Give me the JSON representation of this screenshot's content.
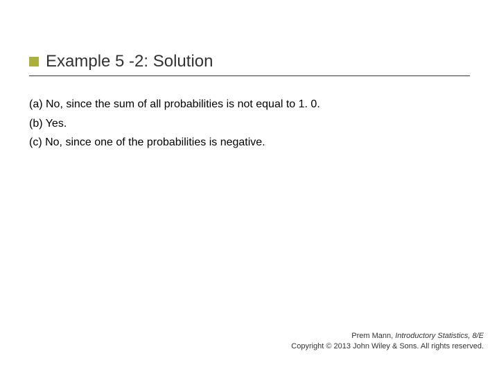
{
  "colors": {
    "accent_square": "#aab03a",
    "title_color": "#333333",
    "body_color": "#000000",
    "underline_color": "#333333",
    "background": "#ffffff",
    "footer_color": "#333333"
  },
  "title": {
    "text": "Example 5 -2: Solution",
    "fontsize": 24
  },
  "body": {
    "lines": [
      "(a) No, since the sum of all probabilities is not equal to 1. 0.",
      "(b) Yes.",
      "(c) No, since one of the probabilities is negative."
    ],
    "fontsize": 16
  },
  "footer": {
    "author": "Prem Mann, ",
    "book_title": "Introductory Statistics, 8/E",
    "copyright": "Copyright © 2013 John Wiley & Sons. All rights reserved.",
    "fontsize": 11
  }
}
